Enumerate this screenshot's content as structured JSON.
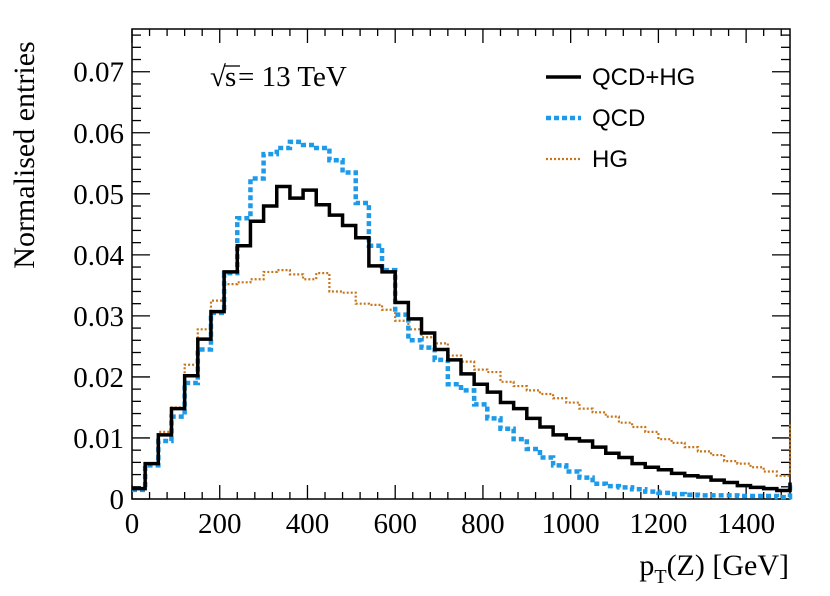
{
  "chart_data": {
    "type": "line",
    "xlabel_main": "p",
    "xlabel_sub": "T",
    "xlabel_rest": "(Z) [GeV]",
    "ylabel": "Normalised entries",
    "annotation_sqrt": "√",
    "annotation_s": "s",
    "annotation_rest": " = 13 TeV",
    "xlim": [
      0,
      1500
    ],
    "ylim": [
      0,
      0.077
    ],
    "x_ticks": [
      "0",
      "200",
      "400",
      "600",
      "800",
      "1000",
      "1200",
      "1400"
    ],
    "x_tick_values": [
      0,
      200,
      400,
      600,
      800,
      1000,
      1200,
      1400
    ],
    "y_ticks": [
      "0",
      "0.01",
      "0.02",
      "0.03",
      "0.04",
      "0.05",
      "0.06",
      "0.07"
    ],
    "y_tick_values": [
      0,
      0.01,
      0.02,
      0.03,
      0.04,
      0.05,
      0.06,
      0.07
    ],
    "bin_width": 30,
    "series": [
      {
        "name": "QCD+HG",
        "color": "#000000",
        "style": "solid",
        "values": [
          0.0017,
          0.0058,
          0.0105,
          0.0148,
          0.0202,
          0.0262,
          0.0307,
          0.0372,
          0.0415,
          0.0455,
          0.048,
          0.0512,
          0.0493,
          0.0506,
          0.0482,
          0.0465,
          0.0448,
          0.0428,
          0.0382,
          0.0372,
          0.0322,
          0.0295,
          0.0272,
          0.0245,
          0.0228,
          0.0205,
          0.0188,
          0.0175,
          0.0158,
          0.0148,
          0.0132,
          0.0118,
          0.0105,
          0.0099,
          0.0095,
          0.0085,
          0.0075,
          0.0068,
          0.0058,
          0.0052,
          0.0048,
          0.0042,
          0.0038,
          0.0036,
          0.0031,
          0.0027,
          0.0022,
          0.0019,
          0.0017,
          0.0014,
          0.0027
        ]
      },
      {
        "name": "QCD",
        "color": "#1e9be8",
        "style": "dashed",
        "values": [
          0.0015,
          0.0055,
          0.0095,
          0.0135,
          0.019,
          0.0245,
          0.0305,
          0.037,
          0.046,
          0.0525,
          0.0565,
          0.0575,
          0.0585,
          0.058,
          0.0575,
          0.0555,
          0.0535,
          0.0485,
          0.0415,
          0.0375,
          0.0302,
          0.026,
          0.0248,
          0.0228,
          0.0188,
          0.0178,
          0.0155,
          0.0132,
          0.0115,
          0.0098,
          0.0082,
          0.0068,
          0.0055,
          0.0045,
          0.0035,
          0.0025,
          0.0021,
          0.0019,
          0.0016,
          0.0012,
          0.001,
          0.0008,
          0.0007,
          0.0006,
          0.0006,
          0.0006,
          0.0005,
          0.0005,
          0.0005,
          0.0003,
          0.0027
        ]
      },
      {
        "name": "HG",
        "color": "#c8751a",
        "style": "dotted",
        "values": [
          0.0017,
          0.0058,
          0.011,
          0.015,
          0.022,
          0.0278,
          0.0325,
          0.0352,
          0.0355,
          0.036,
          0.0372,
          0.0375,
          0.0368,
          0.036,
          0.037,
          0.034,
          0.0338,
          0.032,
          0.0318,
          0.031,
          0.0292,
          0.0278,
          0.0265,
          0.0255,
          0.0235,
          0.0225,
          0.0212,
          0.0208,
          0.0192,
          0.0185,
          0.0178,
          0.0172,
          0.0165,
          0.0158,
          0.0148,
          0.0142,
          0.0135,
          0.0125,
          0.0118,
          0.011,
          0.0098,
          0.0092,
          0.0085,
          0.0078,
          0.0072,
          0.0062,
          0.0058,
          0.0052,
          0.0045,
          0.0038,
          0.0122
        ]
      }
    ],
    "legend_position": "top-right"
  }
}
